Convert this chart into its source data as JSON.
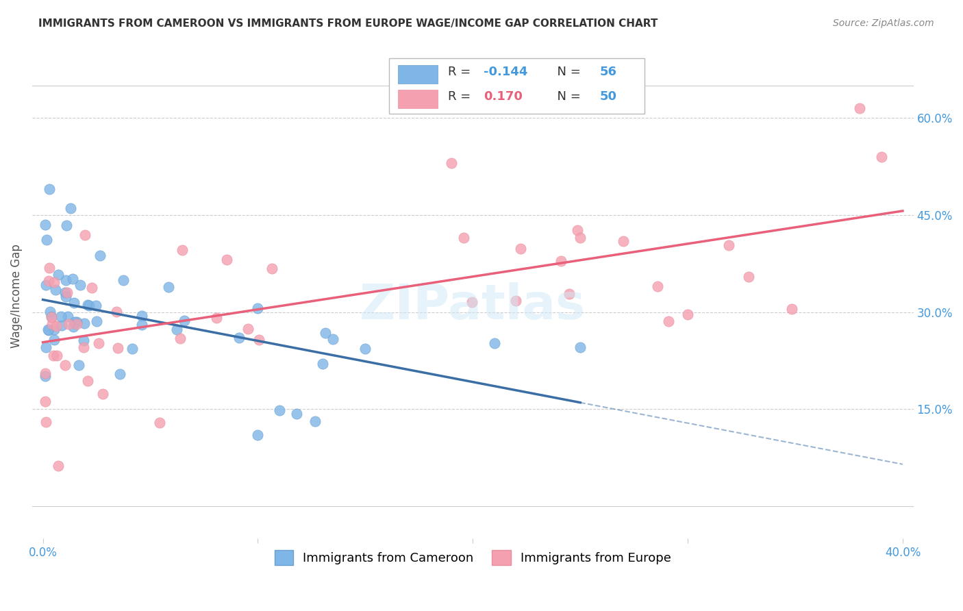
{
  "title": "IMMIGRANTS FROM CAMEROON VS IMMIGRANTS FROM EUROPE WAGE/INCOME GAP CORRELATION CHART",
  "source": "Source: ZipAtlas.com",
  "ylabel_label": "Wage/Income Gap",
  "xlim": [
    -0.005,
    0.405
  ],
  "ylim": [
    -0.05,
    0.7
  ],
  "x_ticks": [
    0.0,
    0.1,
    0.2,
    0.3,
    0.4
  ],
  "x_tick_labels": [
    "0.0%",
    "",
    "",
    "",
    "40.0%"
  ],
  "y_ticks_right": [
    0.15,
    0.3,
    0.45,
    0.6
  ],
  "y_tick_labels_right": [
    "15.0%",
    "30.0%",
    "45.0%",
    "60.0%"
  ],
  "watermark": "ZIPatlas",
  "blue_color": "#7EB6E8",
  "pink_color": "#F4A0B0",
  "blue_edge": "#6AA0D0",
  "pink_edge": "#E890A0",
  "blue_line_color": "#3A6EA5",
  "pink_line_color": "#E8607A",
  "blue_r": "-0.144",
  "blue_n": "56",
  "pink_r": "0.170",
  "pink_n": "50",
  "cam_label": "Immigrants from Cameroon",
  "eur_label": "Immigrants from Europe"
}
